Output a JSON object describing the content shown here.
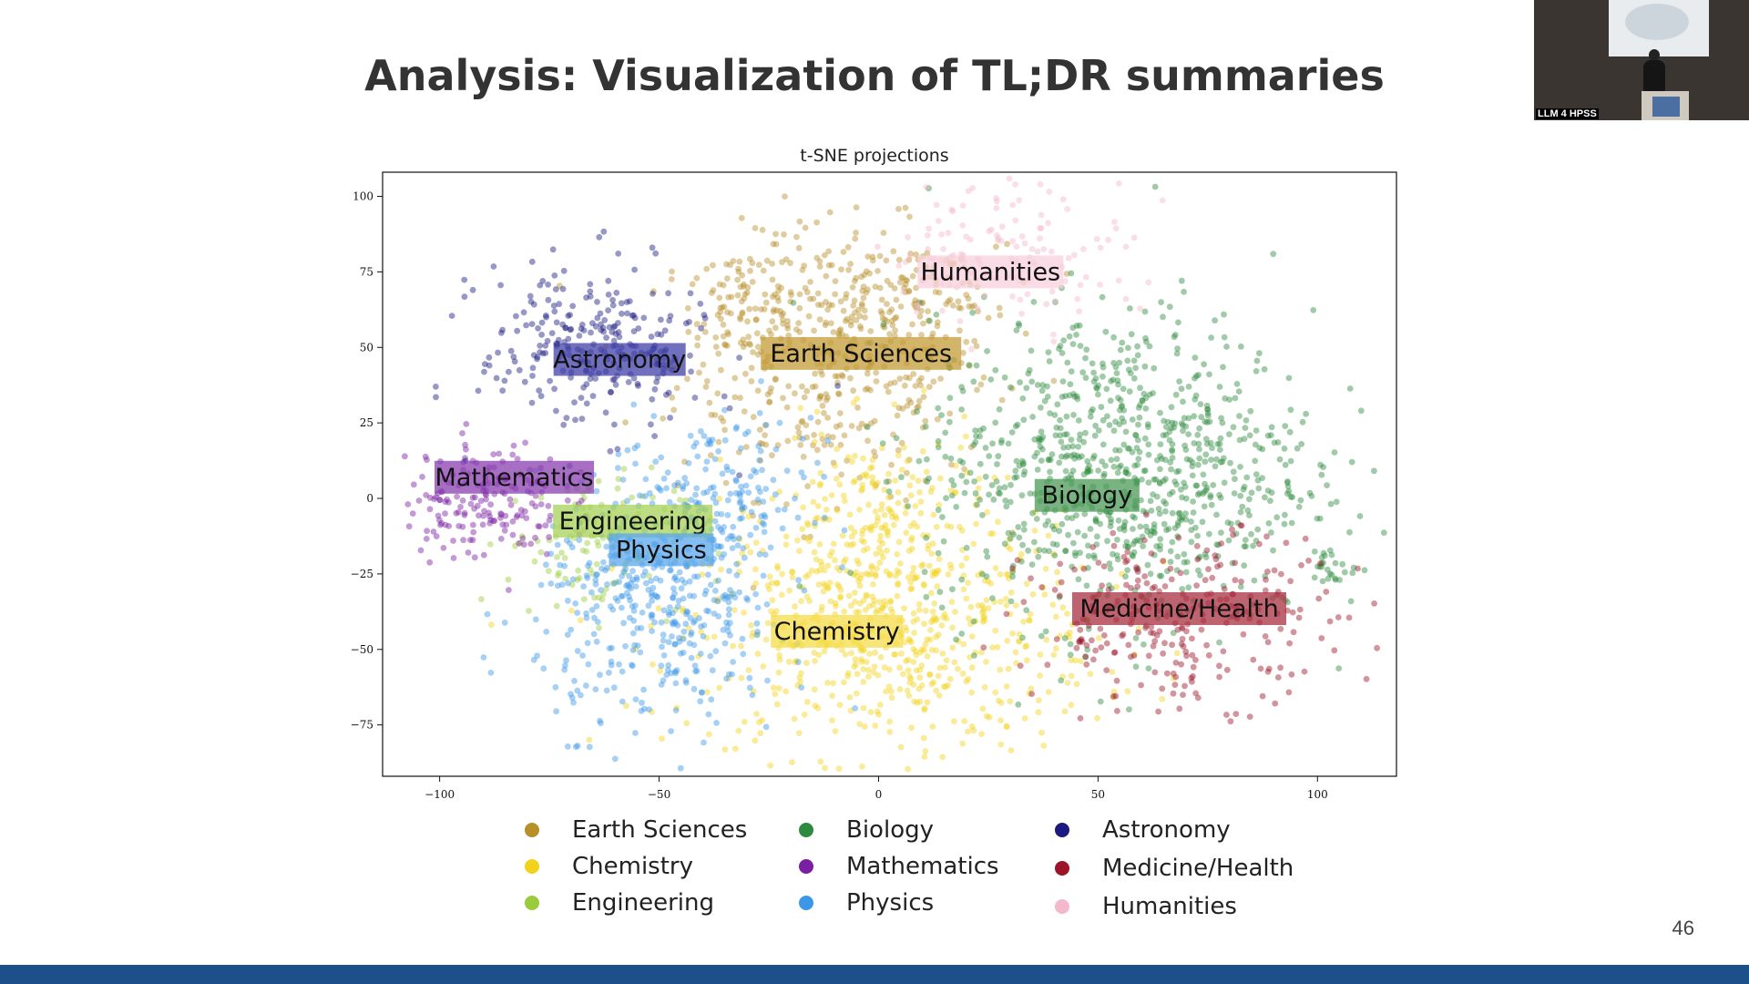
{
  "slide": {
    "title": "Analysis: Visualization of TL;DR summaries",
    "page_number": "46"
  },
  "camera": {
    "label": "LLM 4 HPSS",
    "colors": {
      "wall": "#3a3530",
      "screen": "#e9ecee"
    }
  },
  "colors": {
    "bottom_bar": "#1d4f8a"
  },
  "chart_data": {
    "type": "scatter",
    "title": "t-SNE projections",
    "xlabel": "",
    "ylabel": "",
    "xlim": [
      -113,
      118
    ],
    "ylim": [
      -92,
      108
    ],
    "xticks": [
      -100,
      -50,
      0,
      50,
      100
    ],
    "yticks": [
      100,
      75,
      50,
      25,
      0,
      -25,
      -50,
      -75
    ],
    "xtick_labels": [
      "−100",
      "−50",
      "0",
      "50",
      "100"
    ],
    "ytick_labels": [
      "100",
      "75",
      "50",
      "25",
      "0",
      "−25",
      "−50",
      "−75"
    ],
    "grid": false,
    "legend_position": "bottom",
    "series": [
      {
        "name": "Earth Sciences",
        "color": "#b8902a",
        "clusters": [
          {
            "cx": -10,
            "cy": 45,
            "sx": 18,
            "sy": 22,
            "n": 420
          },
          {
            "cx": -30,
            "cy": 65,
            "sx": 6,
            "sy": 10,
            "n": 80
          },
          {
            "cx": 5,
            "cy": 68,
            "sx": 12,
            "sy": 8,
            "n": 100
          }
        ]
      },
      {
        "name": "Chemistry",
        "color": "#f2d31a",
        "clusters": [
          {
            "cx": 2,
            "cy": -45,
            "sx": 24,
            "sy": 20,
            "n": 650
          },
          {
            "cx": 0,
            "cy": -5,
            "sx": 12,
            "sy": 14,
            "n": 180
          }
        ]
      },
      {
        "name": "Engineering",
        "color": "#9acb3c",
        "clusters": [
          {
            "cx": -65,
            "cy": -15,
            "sx": 10,
            "sy": 12,
            "n": 120
          }
        ]
      },
      {
        "name": "Biology",
        "color": "#2e8b3e",
        "clusters": [
          {
            "cx": 55,
            "cy": 10,
            "sx": 22,
            "sy": 26,
            "n": 900
          },
          {
            "cx": 103,
            "cy": -23,
            "sx": 3,
            "sy": 3,
            "n": 25
          }
        ]
      },
      {
        "name": "Mathematics",
        "color": "#7a1fa2",
        "clusters": [
          {
            "cx": -90,
            "cy": 0,
            "sx": 9,
            "sy": 10,
            "n": 180
          }
        ]
      },
      {
        "name": "Physics",
        "color": "#3c97e8",
        "clusters": [
          {
            "cx": -50,
            "cy": -35,
            "sx": 14,
            "sy": 20,
            "n": 420
          },
          {
            "cx": -35,
            "cy": 0,
            "sx": 10,
            "sy": 14,
            "n": 150
          }
        ]
      },
      {
        "name": "Astronomy",
        "color": "#1a1a80",
        "clusters": [
          {
            "cx": -65,
            "cy": 50,
            "sx": 13,
            "sy": 14,
            "n": 260
          }
        ]
      },
      {
        "name": "Medicine/Health",
        "color": "#9b1428",
        "clusters": [
          {
            "cx": 70,
            "cy": -40,
            "sx": 18,
            "sy": 14,
            "n": 260
          }
        ]
      },
      {
        "name": "Humanities",
        "color": "#f3b8c9",
        "clusters": [
          {
            "cx": 30,
            "cy": 82,
            "sx": 14,
            "sy": 12,
            "n": 130
          }
        ]
      }
    ],
    "annotations": [
      {
        "text": "Humanities",
        "x": 25.5,
        "y": 75,
        "color": "#f7d0dc",
        "text_color": "#111"
      },
      {
        "text": "Earth Sciences",
        "x": -4,
        "y": 48,
        "color": "#c49c38",
        "text_color": "#111"
      },
      {
        "text": "Astronomy",
        "x": -59,
        "y": 46,
        "color": "#4040a8",
        "text_color": "#111"
      },
      {
        "text": "Mathematics",
        "x": -83,
        "y": 7,
        "color": "#8a3fb0",
        "text_color": "#111"
      },
      {
        "text": "Biology",
        "x": 47.5,
        "y": 1,
        "color": "#4c9a58",
        "text_color": "#111"
      },
      {
        "text": "Engineering",
        "x": -56,
        "y": -7.5,
        "color": "#a7d25a",
        "text_color": "#111"
      },
      {
        "text": "Physics",
        "x": -49.5,
        "y": -17,
        "color": "#5aa7ee",
        "text_color": "#111"
      },
      {
        "text": "Chemistry",
        "x": -9.5,
        "y": -44,
        "color": "#f5dc4a",
        "text_color": "#111"
      },
      {
        "text": "Medicine/Health",
        "x": 68.5,
        "y": -36.5,
        "color": "#a83040",
        "text_color": "#111"
      }
    ]
  },
  "legend": {
    "items": [
      {
        "label": "Earth Sciences",
        "color": "#b8902a"
      },
      {
        "label": "Chemistry",
        "color": "#f2d31a"
      },
      {
        "label": "Engineering",
        "color": "#9acb3c"
      },
      {
        "label": "Biology",
        "color": "#2e8b3e"
      },
      {
        "label": "Mathematics",
        "color": "#7a1fa2"
      },
      {
        "label": "Physics",
        "color": "#3c97e8"
      },
      {
        "label": "Astronomy",
        "color": "#1a1a80"
      },
      {
        "label": "Medicine/Health",
        "color": "#9b1428"
      },
      {
        "label": "Humanities",
        "color": "#f3b8c9"
      }
    ]
  }
}
